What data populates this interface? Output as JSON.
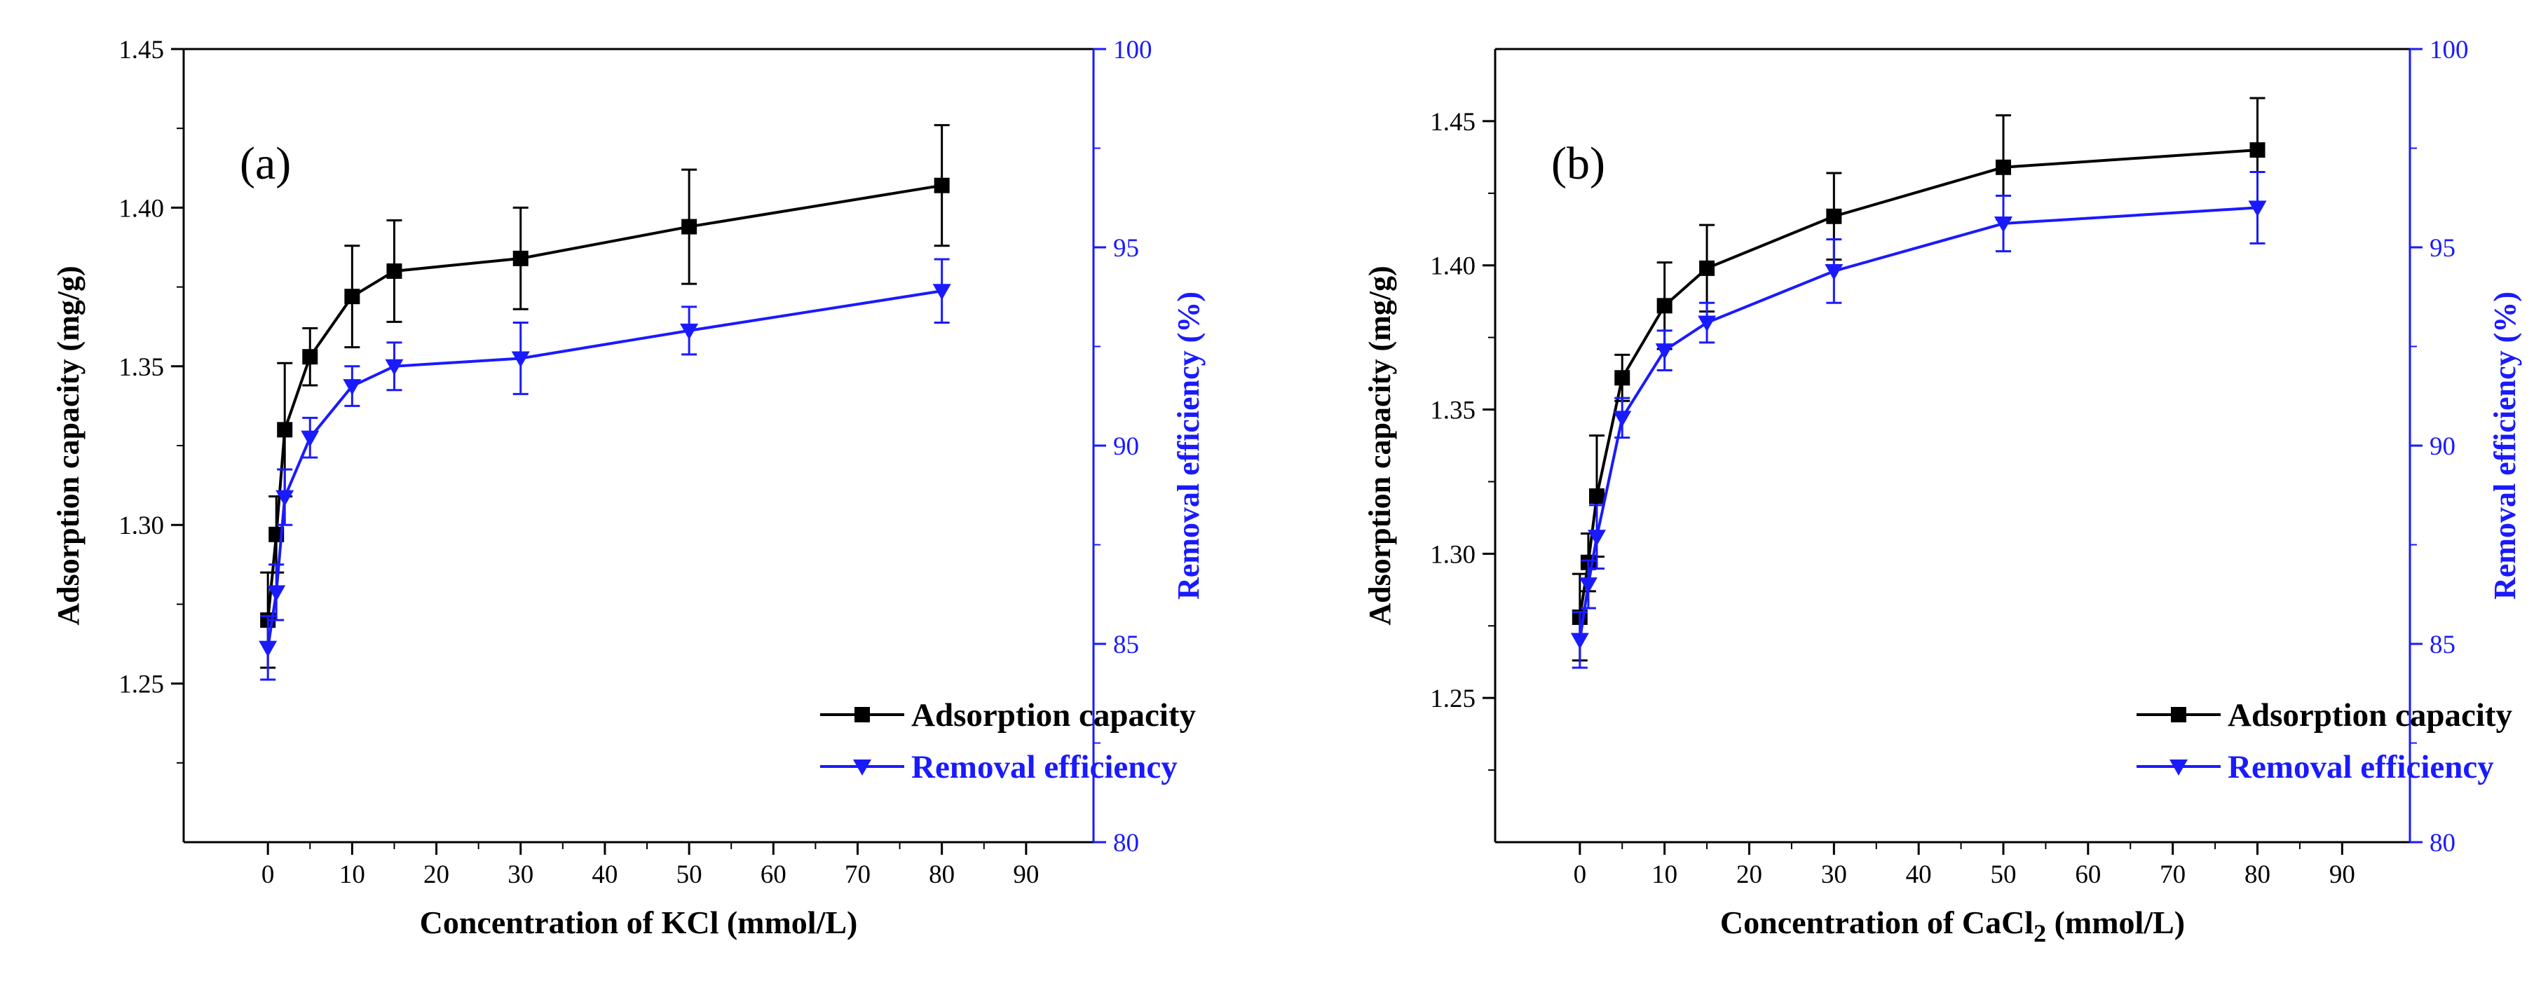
{
  "chart_data": [
    {
      "type": "line",
      "panel_label": "(a)",
      "x_label": "Concentration of KCl (mmol/L)",
      "y_label": "Adsorption capacity (mg/g)",
      "y2_label": "Removal efficiency (%)",
      "xlim": [
        -10,
        98
      ],
      "ylim": [
        1.2,
        1.45
      ],
      "y2lim": [
        80,
        100
      ],
      "x_ticks": [
        0,
        10,
        20,
        30,
        40,
        50,
        60,
        70,
        80,
        90
      ],
      "y_ticks": [
        1.25,
        1.3,
        1.35,
        1.4,
        1.45
      ],
      "y_tick_labels": [
        "1.25",
        "1.30",
        "1.35",
        "1.40",
        "1.45"
      ],
      "y2_ticks": [
        80,
        85,
        90,
        95,
        100
      ],
      "legend_position": "bottom-right",
      "series": [
        {
          "name": "Adsorption capacity",
          "axis": "left",
          "color": "#000000",
          "marker": "square",
          "x": [
            0,
            1,
            2,
            5,
            10,
            15,
            30,
            50,
            80
          ],
          "y": [
            1.27,
            1.297,
            1.33,
            1.353,
            1.372,
            1.38,
            1.384,
            1.394,
            1.407
          ],
          "err": [
            0.015,
            0.012,
            0.021,
            0.009,
            0.016,
            0.016,
            0.016,
            0.018,
            0.019
          ]
        },
        {
          "name": "Removal efficiency",
          "axis": "right",
          "color": "#1a1aff",
          "marker": "triangle-down",
          "x": [
            0,
            1,
            2,
            5,
            10,
            15,
            30,
            50,
            80
          ],
          "y": [
            84.9,
            86.3,
            88.7,
            90.2,
            91.5,
            92.0,
            92.2,
            92.9,
            93.9
          ],
          "err": [
            0.8,
            0.7,
            0.7,
            0.5,
            0.5,
            0.6,
            0.9,
            0.6,
            0.8
          ]
        }
      ]
    },
    {
      "type": "line",
      "panel_label": "(b)",
      "x_label": "Concentration of CaCl",
      "x_label_subscript": "2",
      "x_label_suffix": " (mmol/L)",
      "y_label": "Adsorption capacity (mg/g)",
      "y2_label": "Removal efficiency (%)",
      "xlim": [
        -10,
        98
      ],
      "ylim": [
        1.2,
        1.475
      ],
      "y2lim": [
        80,
        100
      ],
      "x_ticks": [
        0,
        10,
        20,
        30,
        40,
        50,
        60,
        70,
        80,
        90
      ],
      "y_ticks": [
        1.25,
        1.3,
        1.35,
        1.4,
        1.45
      ],
      "y_tick_labels": [
        "1.25",
        "1.30",
        "1.35",
        "1.40",
        "1.45"
      ],
      "y2_ticks": [
        80,
        85,
        90,
        95,
        100
      ],
      "legend_position": "bottom-right",
      "series": [
        {
          "name": "Adsorption capacity",
          "axis": "left",
          "color": "#000000",
          "marker": "square",
          "x": [
            0,
            1,
            2,
            5,
            10,
            15,
            30,
            50,
            80
          ],
          "y": [
            1.278,
            1.297,
            1.32,
            1.361,
            1.386,
            1.399,
            1.417,
            1.434,
            1.44
          ],
          "err": [
            0.015,
            0.01,
            0.021,
            0.008,
            0.015,
            0.015,
            0.015,
            0.018,
            0.018
          ]
        },
        {
          "name": "Removal efficiency",
          "axis": "right",
          "color": "#1a1aff",
          "marker": "triangle-down",
          "x": [
            0,
            1,
            2,
            5,
            10,
            15,
            30,
            50,
            80
          ],
          "y": [
            85.1,
            86.5,
            87.7,
            90.7,
            92.4,
            93.1,
            94.4,
            95.6,
            96.0
          ],
          "err": [
            0.7,
            0.6,
            0.8,
            0.5,
            0.5,
            0.5,
            0.8,
            0.7,
            0.9
          ]
        }
      ]
    }
  ]
}
